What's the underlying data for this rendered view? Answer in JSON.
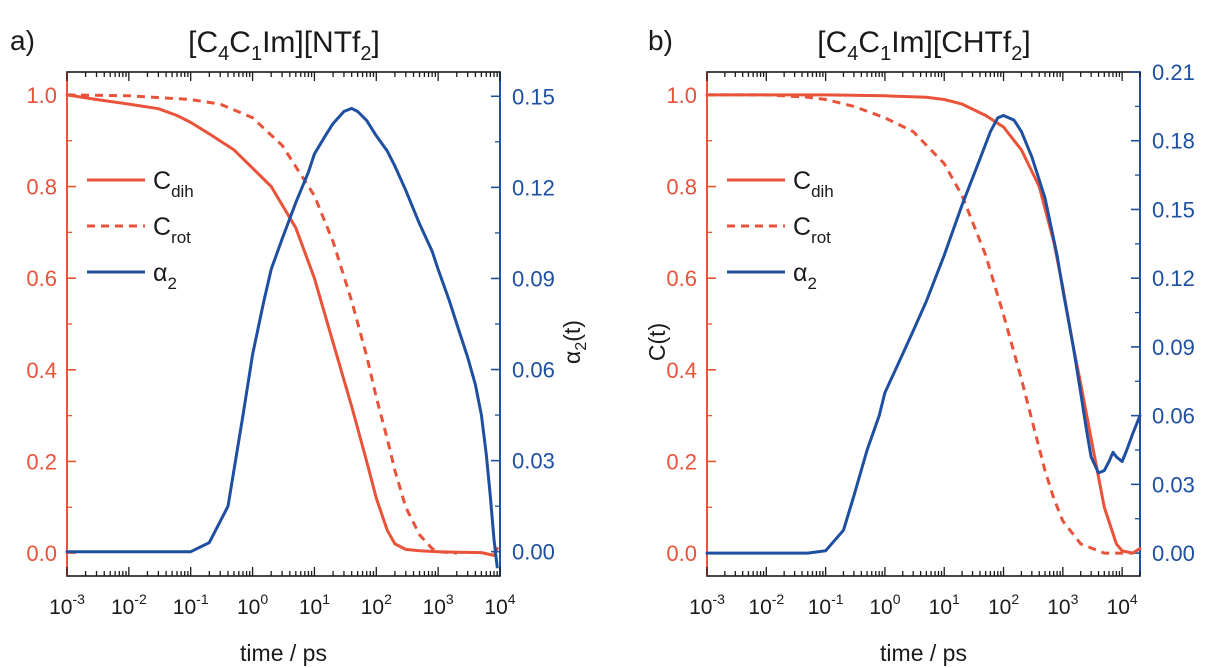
{
  "colors": {
    "left_axis": "#e8533a",
    "right_axis": "#1f4fa0",
    "c_dih": "#e8533a",
    "c_rot": "#e8533a",
    "alpha2": "#1f4fa0"
  },
  "chart_data": [
    {
      "panel": "a)",
      "title": {
        "main": "[C4C1Im][NTf2]",
        "parts": [
          "[C",
          "4",
          "C",
          "1",
          "Im][NTf",
          "2",
          "]"
        ]
      },
      "type": "line",
      "x_scale": "log",
      "xlim": [
        0.001,
        10000
      ],
      "xlabel": "time / ps",
      "x_ticks": [
        {
          "value": 0.001,
          "base": "10",
          "exp": "-3"
        },
        {
          "value": 0.01,
          "base": "10",
          "exp": "-2"
        },
        {
          "value": 0.1,
          "base": "10",
          "exp": "-1"
        },
        {
          "value": 1,
          "base": "10",
          "exp": "0"
        },
        {
          "value": 10,
          "base": "10",
          "exp": "1"
        },
        {
          "value": 100,
          "base": "10",
          "exp": "2"
        },
        {
          "value": 1000,
          "base": "10",
          "exp": "3"
        },
        {
          "value": 10000,
          "base": "10",
          "exp": "4"
        }
      ],
      "ylabel_left": "",
      "ylim_left": [
        -0.05,
        1.05
      ],
      "yticks_left": [
        "0.0",
        "0.2",
        "0.4",
        "0.6",
        "0.8",
        "1.0"
      ],
      "ylabel_right": {
        "main": "α",
        "sub": "2",
        "suffix": "(t)"
      },
      "ylim_right": [
        -0.008,
        0.158
      ],
      "yticks_right": [
        "0.00",
        "0.03",
        "0.06",
        "0.09",
        "0.12",
        "0.15"
      ],
      "legend": [
        {
          "main": "C",
          "sub": "dih",
          "style": "solid",
          "color_key": "c_dih"
        },
        {
          "main": "C",
          "sub": "rot",
          "style": "dashed",
          "color_key": "c_rot"
        },
        {
          "main": "α",
          "sub": "2",
          "style": "solid",
          "color_key": "alpha2"
        }
      ],
      "series": [
        {
          "name": "Cdih",
          "axis": "left",
          "style": "solid",
          "color_key": "c_dih",
          "x": [
            0.001,
            0.003,
            0.01,
            0.03,
            0.06,
            0.1,
            0.2,
            0.5,
            1,
            2,
            5,
            10,
            20,
            40,
            70,
            100,
            150,
            200,
            300,
            500,
            1000,
            2000,
            5000,
            8000,
            9000
          ],
          "y": [
            1.0,
            0.99,
            0.98,
            0.97,
            0.955,
            0.94,
            0.915,
            0.88,
            0.84,
            0.8,
            0.71,
            0.6,
            0.46,
            0.32,
            0.2,
            0.12,
            0.05,
            0.02,
            0.008,
            0.005,
            0.003,
            0.002,
            0.001,
            -0.005,
            0.01
          ]
        },
        {
          "name": "Crot",
          "axis": "left",
          "style": "dashed",
          "color_key": "c_rot",
          "x": [
            0.001,
            0.01,
            0.1,
            0.3,
            1,
            3,
            10,
            20,
            40,
            70,
            100,
            150,
            200,
            300,
            500,
            800,
            1000,
            2000
          ],
          "y": [
            1.0,
            0.998,
            0.99,
            0.98,
            0.95,
            0.89,
            0.78,
            0.68,
            0.55,
            0.43,
            0.34,
            0.25,
            0.18,
            0.1,
            0.04,
            0.01,
            0.003,
            0.0
          ]
        },
        {
          "name": "α2",
          "axis": "right",
          "style": "solid",
          "color_key": "alpha2",
          "x": [
            0.001,
            0.01,
            0.05,
            0.1,
            0.2,
            0.4,
            0.7,
            1,
            1.5,
            2,
            3,
            5,
            8,
            10,
            15,
            20,
            30,
            40,
            50,
            70,
            100,
            150,
            200,
            300,
            500,
            800,
            1000,
            1500,
            2000,
            3000,
            4000,
            5000,
            6000,
            7000,
            8000,
            9000
          ],
          "y": [
            0.0,
            0.0,
            0.0,
            0.0,
            0.003,
            0.015,
            0.045,
            0.065,
            0.082,
            0.093,
            0.103,
            0.115,
            0.125,
            0.131,
            0.137,
            0.141,
            0.145,
            0.146,
            0.145,
            0.142,
            0.137,
            0.132,
            0.127,
            0.119,
            0.108,
            0.099,
            0.093,
            0.083,
            0.075,
            0.064,
            0.055,
            0.045,
            0.032,
            0.018,
            0.004,
            -0.005
          ]
        }
      ]
    },
    {
      "panel": "b)",
      "title": {
        "main": "[C4C1Im][CHTf2]",
        "parts": [
          "[C",
          "4",
          "C",
          "1",
          "Im][CHTf",
          "2",
          "]"
        ]
      },
      "type": "line",
      "x_scale": "log",
      "xlim": [
        0.001,
        20000
      ],
      "xlabel": "time / ps",
      "x_ticks": [
        {
          "value": 0.001,
          "base": "10",
          "exp": "-3"
        },
        {
          "value": 0.01,
          "base": "10",
          "exp": "-2"
        },
        {
          "value": 0.1,
          "base": "10",
          "exp": "-1"
        },
        {
          "value": 1,
          "base": "10",
          "exp": "0"
        },
        {
          "value": 10,
          "base": "10",
          "exp": "1"
        },
        {
          "value": 100,
          "base": "10",
          "exp": "2"
        },
        {
          "value": 1000,
          "base": "10",
          "exp": "3"
        },
        {
          "value": 10000,
          "base": "10",
          "exp": "4"
        }
      ],
      "ylabel_left": "C(t)",
      "ylim_left": [
        -0.05,
        1.05
      ],
      "yticks_left": [
        "0.0",
        "0.2",
        "0.4",
        "0.6",
        "0.8",
        "1.0"
      ],
      "ylabel_right": null,
      "ylim_right": [
        -0.01,
        0.21
      ],
      "yticks_right": [
        "0.00",
        "0.03",
        "0.06",
        "0.09",
        "0.12",
        "0.15",
        "0.18",
        "0.21"
      ],
      "legend": [
        {
          "main": "C",
          "sub": "dih",
          "style": "solid",
          "color_key": "c_dih"
        },
        {
          "main": "C",
          "sub": "rot",
          "style": "dashed",
          "color_key": "c_rot"
        },
        {
          "main": "α",
          "sub": "2",
          "style": "solid",
          "color_key": "alpha2"
        }
      ],
      "series": [
        {
          "name": "Cdih",
          "axis": "left",
          "style": "solid",
          "color_key": "c_dih",
          "x": [
            0.001,
            0.01,
            0.1,
            1,
            5,
            10,
            20,
            50,
            100,
            200,
            400,
            700,
            1000,
            1500,
            2000,
            3000,
            5000,
            8000,
            10000,
            15000,
            20000
          ],
          "y": [
            1.0,
            1.0,
            1.0,
            0.998,
            0.995,
            0.99,
            0.98,
            0.955,
            0.93,
            0.88,
            0.8,
            0.68,
            0.58,
            0.45,
            0.37,
            0.25,
            0.1,
            0.02,
            0.005,
            0.0,
            0.01
          ]
        },
        {
          "name": "Crot",
          "axis": "left",
          "style": "dashed",
          "color_key": "c_rot",
          "x": [
            0.001,
            0.01,
            0.05,
            0.1,
            0.3,
            1,
            3,
            10,
            20,
            50,
            100,
            200,
            500,
            700,
            1000,
            2000,
            5000,
            10000,
            15000
          ],
          "y": [
            1.0,
            1.0,
            0.995,
            0.99,
            0.975,
            0.95,
            0.92,
            0.85,
            0.78,
            0.65,
            0.52,
            0.38,
            0.18,
            0.12,
            0.07,
            0.02,
            0.0,
            0.0,
            0.0
          ]
        },
        {
          "name": "α2",
          "axis": "right",
          "style": "solid",
          "color_key": "alpha2",
          "x": [
            0.001,
            0.01,
            0.05,
            0.1,
            0.2,
            0.3,
            0.5,
            0.8,
            1,
            2,
            3,
            5,
            10,
            20,
            40,
            60,
            80,
            100,
            150,
            200,
            300,
            500,
            800,
            1000,
            1500,
            2000,
            2500,
            3000,
            4000,
            5000,
            6000,
            7000,
            8000,
            10000,
            12000,
            15000,
            20000
          ],
          "y": [
            0.0,
            0.0,
            0.0,
            0.001,
            0.01,
            0.025,
            0.045,
            0.06,
            0.07,
            0.087,
            0.097,
            0.11,
            0.13,
            0.152,
            0.172,
            0.184,
            0.19,
            0.191,
            0.189,
            0.184,
            0.173,
            0.155,
            0.13,
            0.115,
            0.09,
            0.07,
            0.054,
            0.042,
            0.035,
            0.036,
            0.04,
            0.044,
            0.042,
            0.04,
            0.045,
            0.052,
            0.06
          ]
        }
      ]
    }
  ]
}
